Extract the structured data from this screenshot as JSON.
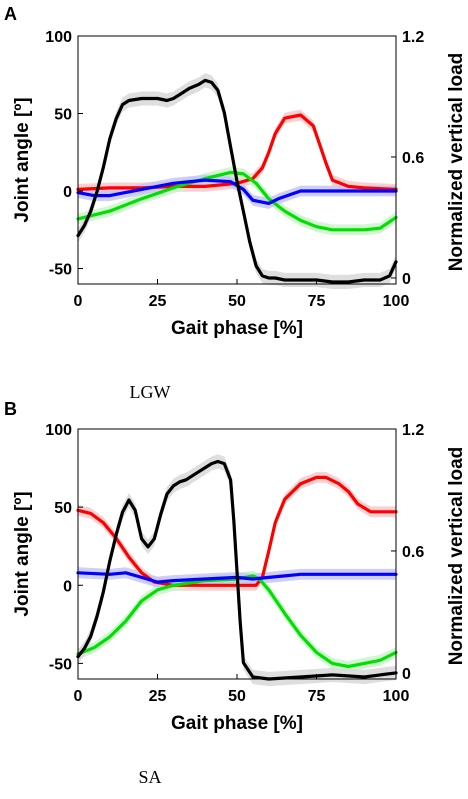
{
  "chart_data": [
    {
      "panel": "A",
      "caption": "LGW",
      "type": "line",
      "xlabel": "Gait phase [%]",
      "ylabel": "Joint angle [º]",
      "y2label": "Normalized vertical load",
      "xlim": [
        0,
        100
      ],
      "ylim": [
        -60,
        100
      ],
      "y2lim": [
        -0.03,
        1.2
      ],
      "xticks": [
        "0",
        "25",
        "50",
        "75",
        "100"
      ],
      "yticks": [
        "-50",
        "0",
        "50",
        "100"
      ],
      "y2ticks": [
        "0",
        "0.6",
        "1.2"
      ],
      "series": [
        {
          "color": "#ff0000",
          "band_color": "#f7caca",
          "axis": "left",
          "x": [
            0,
            10,
            20,
            30,
            40,
            50,
            55,
            58,
            60,
            62,
            65,
            70,
            74,
            76,
            78,
            80,
            85,
            90,
            100
          ],
          "y": [
            1,
            2,
            2,
            3,
            3,
            5,
            8,
            15,
            25,
            37,
            47,
            49,
            42,
            30,
            18,
            7,
            3,
            2,
            1
          ]
        },
        {
          "color": "#00e000",
          "band_color": "#c9f5c9",
          "axis": "left",
          "x": [
            0,
            10,
            20,
            30,
            40,
            48,
            52,
            56,
            60,
            65,
            70,
            75,
            80,
            90,
            95,
            100
          ],
          "y": [
            -18,
            -13,
            -5,
            2,
            8,
            12,
            11,
            5,
            -5,
            -13,
            -19,
            -23,
            -25,
            -25,
            -24,
            -17
          ]
        },
        {
          "color": "#0000ff",
          "band_color": "#c6c6f4",
          "axis": "left",
          "x": [
            0,
            5,
            10,
            20,
            30,
            40,
            48,
            52,
            55,
            60,
            63,
            70,
            80,
            90,
            100
          ],
          "y": [
            -1,
            -3,
            -3,
            1,
            5,
            7,
            6,
            1,
            -6,
            -8,
            -5,
            0,
            0,
            0,
            0
          ]
        },
        {
          "color": "#000000",
          "band_color": "#d8d8d8",
          "axis": "right",
          "x": [
            0,
            2,
            4,
            6,
            8,
            10,
            12,
            14,
            16,
            20,
            25,
            28,
            30,
            32,
            35,
            38,
            40,
            42,
            44,
            46,
            48,
            50,
            52,
            54,
            56,
            58,
            60,
            62,
            65,
            70,
            75,
            80,
            85,
            90,
            95,
            98,
            100
          ],
          "y": [
            0.21,
            0.26,
            0.33,
            0.43,
            0.55,
            0.69,
            0.79,
            0.86,
            0.88,
            0.89,
            0.89,
            0.88,
            0.89,
            0.91,
            0.94,
            0.96,
            0.98,
            0.97,
            0.93,
            0.82,
            0.65,
            0.48,
            0.33,
            0.18,
            0.06,
            0.01,
            0.0,
            0.0,
            -0.01,
            -0.01,
            -0.01,
            -0.02,
            -0.02,
            -0.01,
            -0.01,
            0.01,
            0.08
          ]
        }
      ]
    },
    {
      "panel": "B",
      "caption": "SA",
      "type": "line",
      "xlabel": "Gait phase [%]",
      "ylabel": "Joint angle [º]",
      "y2label": "Normalized vertical load",
      "xlim": [
        0,
        100
      ],
      "ylim": [
        -60,
        100
      ],
      "y2lim": [
        -0.03,
        1.2
      ],
      "xticks": [
        "0",
        "25",
        "50",
        "75",
        "100"
      ],
      "yticks": [
        "-50",
        "0",
        "50",
        "100"
      ],
      "y2ticks": [
        "0",
        "0.6",
        "1.2"
      ],
      "series": [
        {
          "color": "#ff0000",
          "band_color": "#f7caca",
          "axis": "left",
          "x": [
            0,
            4,
            8,
            12,
            16,
            20,
            24,
            30,
            40,
            50,
            54,
            56,
            58,
            60,
            62,
            65,
            70,
            75,
            78,
            82,
            85,
            88,
            92,
            100
          ],
          "y": [
            48,
            46,
            40,
            30,
            18,
            8,
            2,
            0,
            0,
            0,
            0,
            0,
            5,
            22,
            40,
            55,
            65,
            69,
            69,
            65,
            60,
            52,
            47,
            47
          ]
        },
        {
          "color": "#00e000",
          "band_color": "#c9f5c9",
          "axis": "left",
          "x": [
            0,
            5,
            10,
            15,
            20,
            25,
            30,
            40,
            50,
            55,
            57,
            60,
            65,
            70,
            75,
            80,
            85,
            90,
            95,
            100
          ],
          "y": [
            -44,
            -40,
            -33,
            -23,
            -10,
            -3,
            0,
            3,
            4,
            6,
            4,
            -3,
            -18,
            -32,
            -43,
            -50,
            -52,
            -50,
            -48,
            -43
          ]
        },
        {
          "color": "#0000ff",
          "band_color": "#c6c6f4",
          "axis": "left",
          "x": [
            0,
            10,
            15,
            20,
            25,
            30,
            40,
            50,
            55,
            60,
            65,
            70,
            80,
            90,
            100
          ],
          "y": [
            8,
            7,
            8,
            5,
            2,
            3,
            4,
            5,
            4,
            5,
            6,
            7,
            7,
            7,
            7
          ]
        },
        {
          "color": "#000000",
          "band_color": "#d8d8d8",
          "axis": "right",
          "x": [
            0,
            2,
            4,
            6,
            8,
            10,
            12,
            14,
            16,
            18,
            20,
            22,
            24,
            26,
            28,
            30,
            32,
            34,
            36,
            38,
            40,
            42,
            44,
            46,
            48,
            49,
            50,
            51,
            52,
            55,
            60,
            70,
            80,
            90,
            95,
            100
          ],
          "y": [
            0.08,
            0.12,
            0.18,
            0.28,
            0.4,
            0.55,
            0.68,
            0.79,
            0.85,
            0.8,
            0.66,
            0.62,
            0.66,
            0.78,
            0.88,
            0.92,
            0.94,
            0.95,
            0.97,
            0.99,
            1.01,
            1.03,
            1.04,
            1.03,
            0.95,
            0.75,
            0.5,
            0.25,
            0.05,
            -0.02,
            -0.03,
            -0.02,
            -0.01,
            -0.02,
            -0.01,
            0.0
          ]
        }
      ]
    }
  ]
}
